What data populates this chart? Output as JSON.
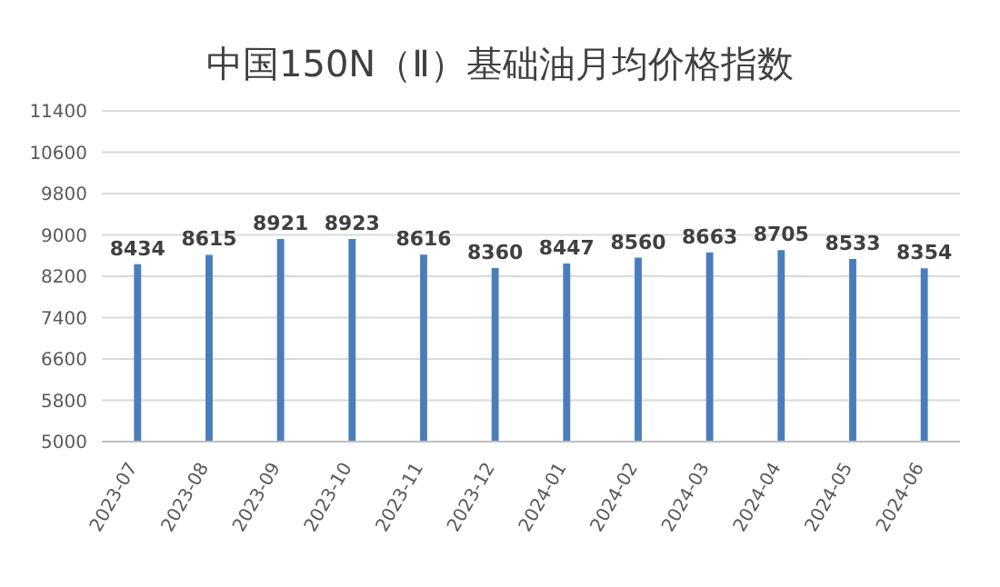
{
  "chart_data": {
    "type": "bar",
    "title": "中国150N（Ⅱ）基础油月均价格指数",
    "categories": [
      "2023-07",
      "2023-08",
      "2023-09",
      "2023-10",
      "2023-11",
      "2023-12",
      "2024-01",
      "2024-02",
      "2024-03",
      "2024-04",
      "2024-05",
      "2024-06"
    ],
    "values": [
      8434,
      8615,
      8921,
      8923,
      8616,
      8360,
      8447,
      8560,
      8663,
      8705,
      8533,
      8354
    ],
    "color": "#4a7ebb",
    "ylim": [
      5000,
      11400
    ],
    "yticks": [
      5000,
      5800,
      6600,
      7400,
      8200,
      9000,
      9800,
      10600,
      11400
    ],
    "grid": "y",
    "data_labels": true
  }
}
